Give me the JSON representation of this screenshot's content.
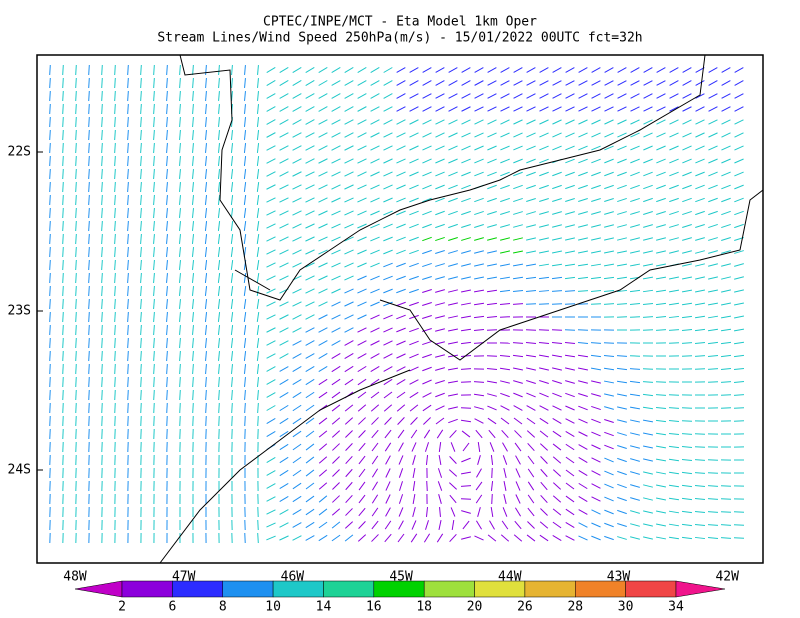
{
  "header": {
    "title": "CPTEC/INPE/MCT -  Eta Model 1km Oper",
    "subtitle": "Stream Lines/Wind Speed 250hPa(m/s) - 15/01/2022 00UTC fct=32h"
  },
  "map": {
    "lat_labels": [
      "22S",
      "23S",
      "24S"
    ],
    "lon_labels": [
      "48W",
      "47W",
      "46W",
      "45W",
      "44W",
      "43W",
      "42W"
    ]
  },
  "colorbar": {
    "levels": [
      2,
      6,
      8,
      10,
      14,
      16,
      18,
      20,
      26,
      28,
      30,
      34
    ],
    "colors": [
      "#c000c8",
      "#8c00dc",
      "#2c2cff",
      "#1e90f0",
      "#1ec8c8",
      "#1ed296",
      "#00d200",
      "#9ee03c",
      "#e0e03c",
      "#e6b432",
      "#f08228",
      "#f04646",
      "#f0148c"
    ]
  }
}
